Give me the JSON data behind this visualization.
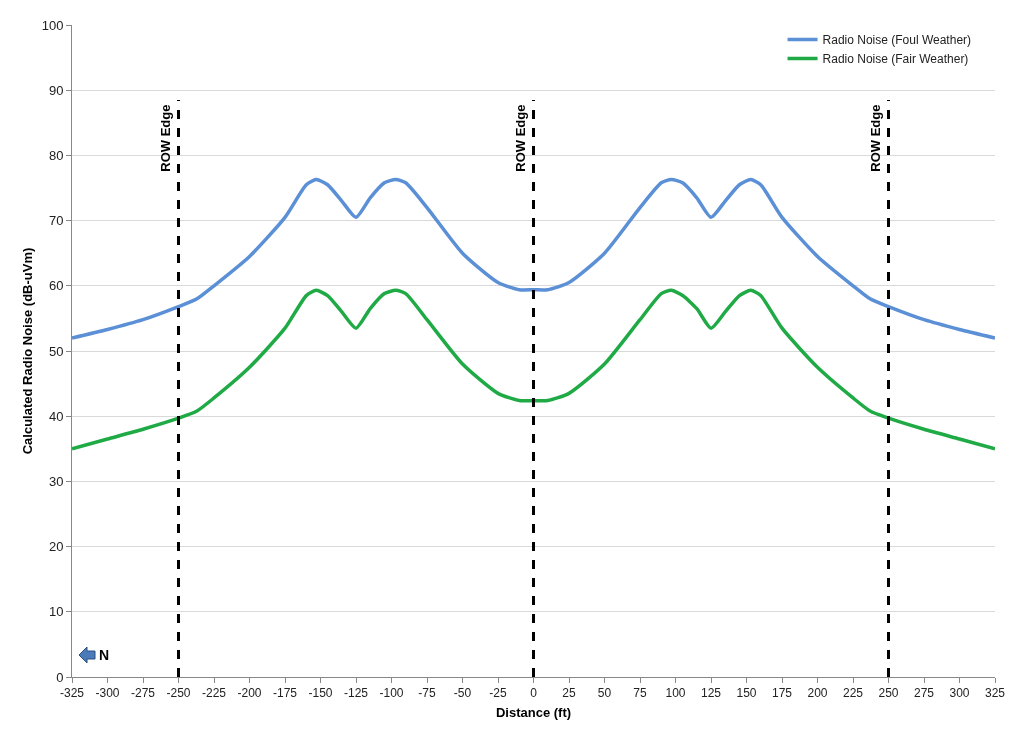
{
  "chart_data": {
    "type": "line",
    "xlabel": "Distance (ft)",
    "ylabel": "Calculated Radio Noise (dB-uVm)",
    "xlim": [
      -325,
      325
    ],
    "xticks": [
      -325,
      -300,
      -275,
      -250,
      -225,
      -200,
      -175,
      -150,
      -125,
      -100,
      -75,
      -50,
      -25,
      0,
      25,
      50,
      75,
      100,
      125,
      150,
      175,
      200,
      225,
      250,
      275,
      300,
      325
    ],
    "ylim": [
      0,
      100
    ],
    "yticks": [
      0,
      10,
      20,
      30,
      40,
      50,
      60,
      70,
      80,
      90,
      100
    ],
    "grid": "y",
    "legend": "top right",
    "marker": "none",
    "line_style": "solid",
    "x": [
      -325,
      -300,
      -275,
      -250,
      -237,
      -225,
      -200,
      -175,
      -160,
      -153,
      -145,
      -135,
      -125,
      -115,
      -105,
      -97,
      -90,
      -75,
      -50,
      -25,
      -10,
      0,
      10,
      25,
      50,
      75,
      90,
      97,
      105,
      115,
      125,
      135,
      145,
      153,
      160,
      175,
      200,
      225,
      237,
      250,
      275,
      300,
      325
    ],
    "series": [
      {
        "name": "Radio Noise (Foul Weather)",
        "color": "#5b8fd6",
        "values": [
          52.0,
          53.3,
          54.8,
          56.8,
          58.0,
          60.0,
          64.5,
          70.5,
          75.5,
          76.3,
          75.5,
          73.0,
          70.5,
          73.5,
          75.8,
          76.3,
          75.8,
          72.0,
          65.0,
          60.5,
          59.4,
          59.4,
          59.4,
          60.5,
          65.0,
          72.0,
          75.8,
          76.3,
          75.8,
          73.5,
          70.5,
          73.0,
          75.5,
          76.3,
          75.5,
          70.5,
          64.5,
          60.0,
          58.0,
          56.8,
          54.8,
          53.3,
          52.0
        ]
      },
      {
        "name": "Radio Noise (Fair Weather)",
        "color": "#1faa45",
        "values": [
          35.0,
          36.5,
          38.0,
          39.7,
          40.8,
          42.8,
          47.5,
          53.5,
          58.5,
          59.3,
          58.5,
          56.0,
          53.5,
          56.5,
          58.8,
          59.3,
          58.8,
          54.8,
          48.0,
          43.5,
          42.4,
          42.4,
          42.4,
          43.5,
          48.0,
          54.8,
          58.8,
          59.3,
          58.5,
          56.5,
          53.5,
          56.0,
          58.5,
          59.3,
          58.5,
          53.5,
          47.5,
          42.8,
          40.8,
          39.7,
          38.0,
          36.5,
          35.0
        ]
      }
    ],
    "ref_lines": [
      {
        "axis": "x",
        "value": -250,
        "label": "ROW Edge",
        "color": "#000000",
        "line_style": "dashed"
      },
      {
        "axis": "x",
        "value": 0,
        "label": "ROW Edge",
        "color": "#000000",
        "line_style": "dashed"
      },
      {
        "axis": "x",
        "value": 250,
        "label": "ROW Edge",
        "color": "#000000",
        "line_style": "dashed"
      }
    ],
    "annotations": [
      "N"
    ]
  }
}
